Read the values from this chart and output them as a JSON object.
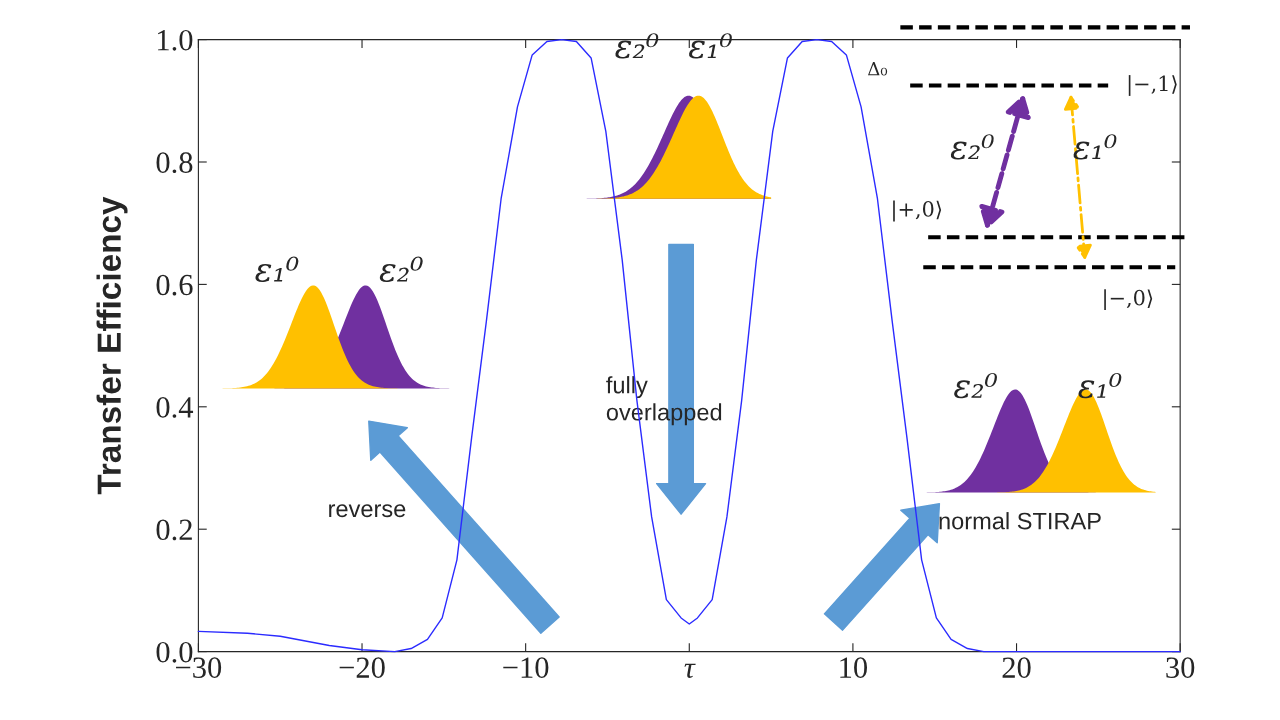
{
  "chart_data": {
    "type": "line",
    "ylabel": "Transfer Efficiency",
    "x": [
      -30,
      -27,
      -25,
      -22,
      -20,
      -18,
      -17,
      -16,
      -15.1,
      -14.2,
      -13.3,
      -12.4,
      -11.5,
      -10.5,
      -9.6,
      -8.7,
      -7.8,
      -6.9,
      -6.0,
      -5.1,
      -4.1,
      -3.2,
      -2.3,
      -1.4,
      -0.5,
      0,
      0.5,
      1.4,
      2.3,
      3.2,
      4.1,
      5.1,
      6.0,
      6.9,
      7.8,
      8.7,
      9.6,
      10.5,
      11.5,
      12.4,
      13.3,
      14.2,
      15.1,
      16,
      17,
      18,
      20,
      25,
      30
    ],
    "series": [
      {
        "color": "#2b2bff",
        "values": [
          0.033,
          0.03,
          0.025,
          0.01,
          0.003,
          0.0,
          0.005,
          0.02,
          0.055,
          0.15,
          0.35,
          0.54,
          0.74,
          0.89,
          0.975,
          0.997,
          1.0,
          0.997,
          0.97,
          0.85,
          0.64,
          0.41,
          0.22,
          0.085,
          0.055,
          0.045,
          0.055,
          0.085,
          0.22,
          0.41,
          0.64,
          0.85,
          0.97,
          0.997,
          1.0,
          0.997,
          0.975,
          0.89,
          0.74,
          0.54,
          0.35,
          0.15,
          0.055,
          0.02,
          0.005,
          0.0,
          0.0,
          0.0,
          0.0
        ]
      }
    ],
    "xlim": [
      -30,
      30
    ],
    "ylim": [
      0,
      1
    ],
    "xticks": [
      {
        "value": -30,
        "label": "−30"
      },
      {
        "value": -20,
        "label": "−20"
      },
      {
        "value": -10,
        "label": "−10"
      },
      {
        "value": 0,
        "label": "τ"
      },
      10,
      20,
      30
    ],
    "yticks": [
      {
        "value": 0,
        "label": "0.0"
      },
      0.2,
      0.4,
      0.6,
      0.8,
      {
        "value": 1,
        "label": "1.0"
      }
    ],
    "grid": false,
    "legend": false,
    "marker": "none",
    "line_style": "solid",
    "annotations": [
      "ε₂⁰",
      "ε₁⁰",
      "ε₁⁰",
      "ε₂⁰",
      "ε₂⁰",
      "ε₁⁰",
      "ε₂⁰",
      "ε₁⁰",
      "Δ₀",
      "|−,1⟩",
      "|+,0⟩",
      "|−,0⟩",
      "reverse",
      "fully\noverlapped",
      "normal STIRAP"
    ]
  }
}
